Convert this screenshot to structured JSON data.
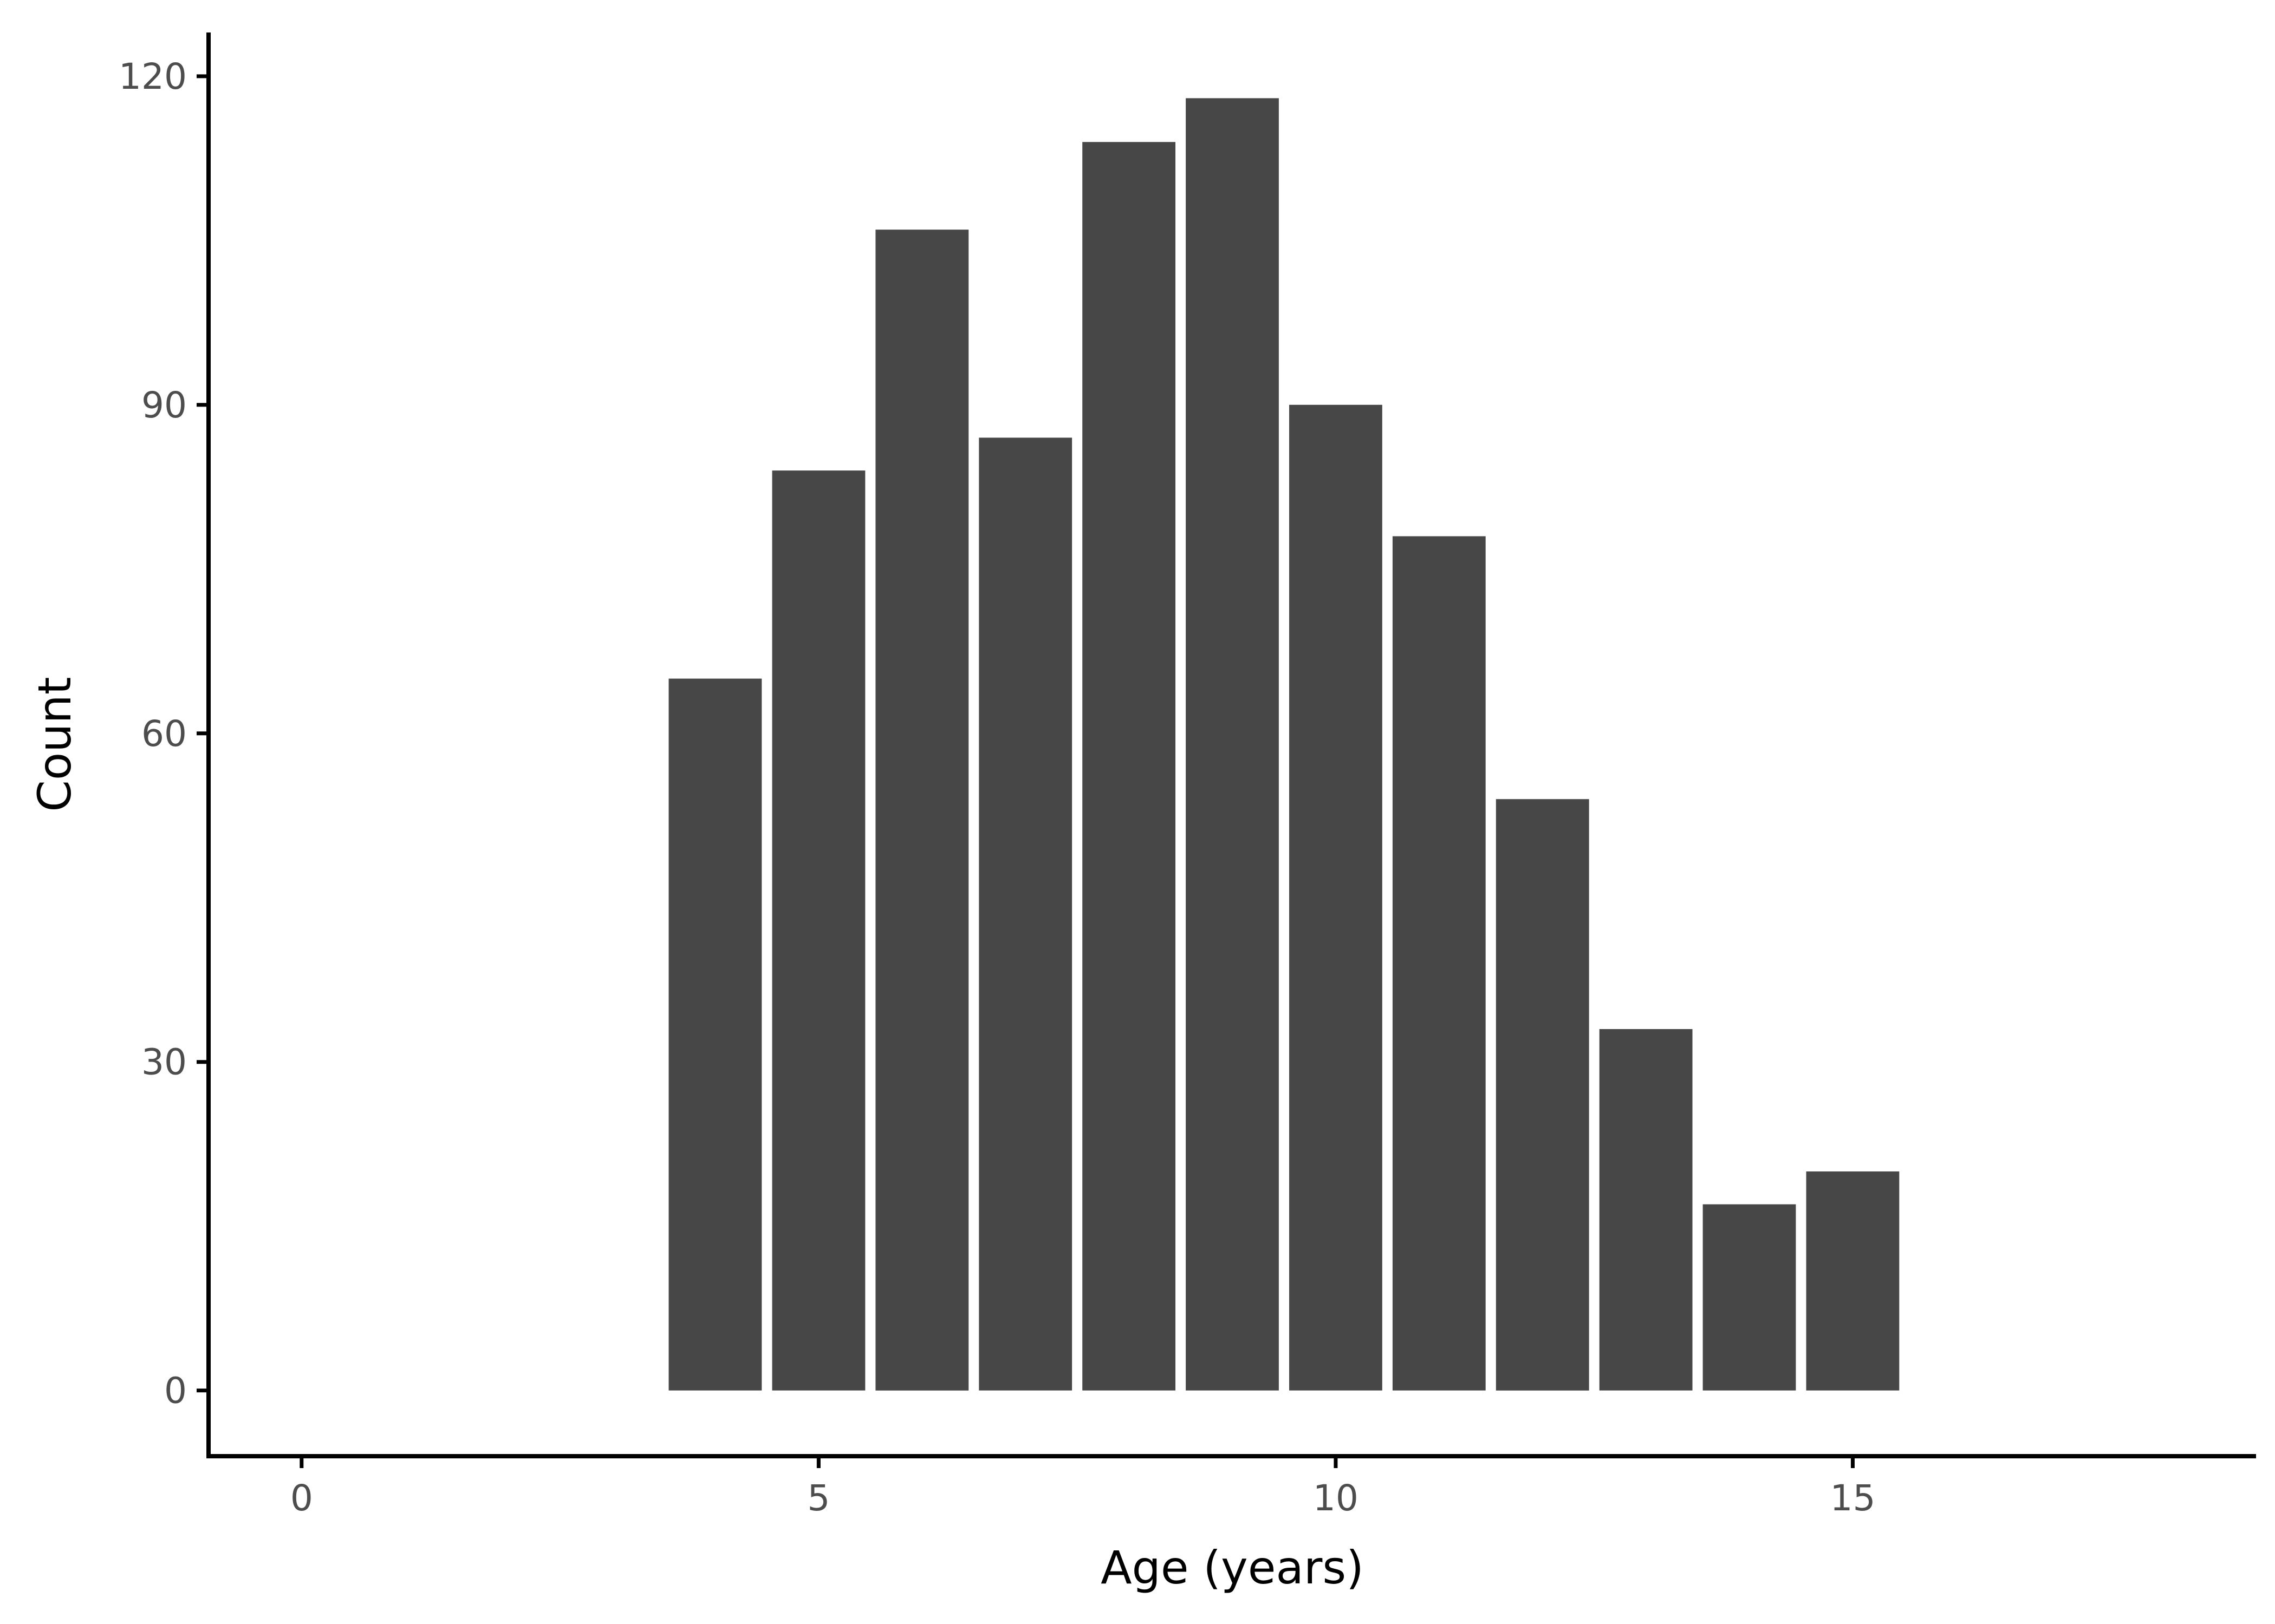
{
  "chart_data": {
    "type": "bar",
    "title": "",
    "xlabel": "Age (years)",
    "ylabel": "Count",
    "x": [
      4,
      5,
      6,
      7,
      8,
      9,
      10,
      11,
      12,
      13,
      14,
      15
    ],
    "values": [
      65,
      84,
      106,
      87,
      114,
      118,
      90,
      78,
      54,
      33,
      17,
      20
    ],
    "xlim": [
      -0.9,
      18.9
    ],
    "ylim": [
      -6,
      124
    ],
    "xticks": [
      0,
      5,
      10,
      15
    ],
    "yticks": [
      0,
      30,
      60,
      90,
      120
    ],
    "xtick_labels": [
      "0",
      "5",
      "10",
      "15"
    ],
    "ytick_labels": [
      "0",
      "30",
      "60",
      "90",
      "120"
    ],
    "bar_color": "#474747",
    "grid": false,
    "legend": "none"
  }
}
